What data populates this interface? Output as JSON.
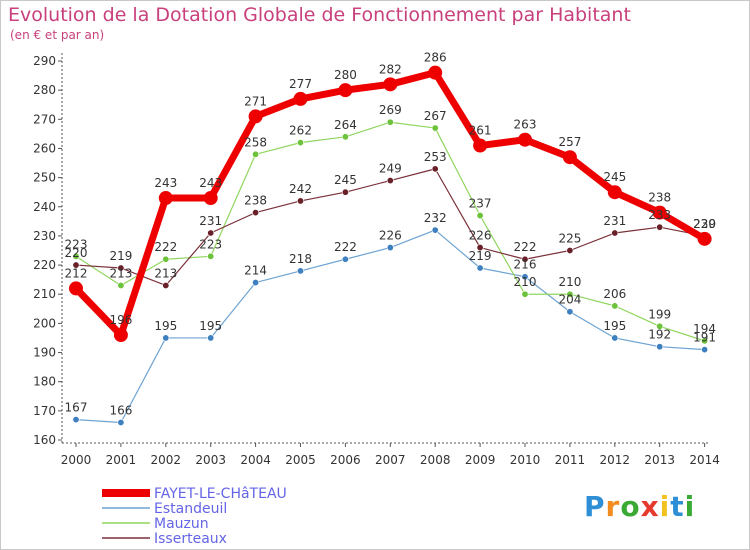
{
  "title": "Evolution de la Dotation Globale de Fonctionnement par Habitant",
  "subtitle": "(en € et par an)",
  "logo": {
    "text": "Proxiti",
    "colors": [
      "#2e8fd6",
      "#f28c1e",
      "#3aaa35",
      "#e63a2e",
      "#f2c21e",
      "#2e8fd6",
      "#3aaa35"
    ]
  },
  "chart_data": {
    "type": "line",
    "x": [
      "2000",
      "2001",
      "2002",
      "2003",
      "2004",
      "2005",
      "2006",
      "2007",
      "2008",
      "2009",
      "2010",
      "2011",
      "2012",
      "2013",
      "2014"
    ],
    "ylim": [
      160,
      290
    ],
    "yticks": [
      160,
      170,
      180,
      190,
      200,
      210,
      220,
      230,
      240,
      250,
      260,
      270,
      280,
      290
    ],
    "grid": false,
    "legend_position": "bottom-left",
    "series": [
      {
        "name": "FAYET-LE-CHâTEAU",
        "color": "#ee0000",
        "width": 7,
        "marker": 7,
        "values": [
          212,
          196,
          243,
          243,
          271,
          277,
          280,
          282,
          286,
          261,
          263,
          257,
          245,
          238,
          229
        ],
        "labels": [
          "212",
          "196",
          "243",
          "243",
          "271",
          "277",
          "280",
          "282",
          "286",
          "261",
          "263",
          "257",
          "245",
          "238",
          "229"
        ]
      },
      {
        "name": "Estandeuil",
        "color": "#6ea3d2",
        "width": 1.2,
        "marker": 3.2,
        "markerColor": "#3e7fc0",
        "values": [
          167,
          166,
          195,
          195,
          214,
          218,
          222,
          226,
          232,
          219,
          216,
          204,
          195,
          192,
          191
        ],
        "labels": [
          "167",
          "166",
          "195",
          "195",
          "214",
          "218",
          "222",
          "226",
          "232",
          "219",
          "216",
          "204",
          "195",
          "192",
          "191"
        ]
      },
      {
        "name": "Mauzun",
        "color": "#90d65f",
        "width": 1.2,
        "marker": 3.2,
        "markerColor": "#6cc23a",
        "values": [
          223,
          213,
          222,
          223,
          258,
          262,
          264,
          269,
          267,
          237,
          210,
          210,
          206,
          199,
          194
        ],
        "labels": [
          "223",
          "213",
          "222",
          "223",
          "258",
          "262",
          "264",
          "269",
          "267",
          "237",
          "210",
          "210",
          "206",
          "199",
          "194"
        ]
      },
      {
        "name": "Isserteaux",
        "color": "#7a3038",
        "width": 1.2,
        "marker": 3.2,
        "markerColor": "#6a2028",
        "values": [
          220,
          219,
          213,
          231,
          238,
          242,
          245,
          249,
          253,
          226,
          222,
          225,
          231,
          233,
          230
        ],
        "labels": [
          "220",
          "219",
          "213",
          "231",
          "238",
          "242",
          "245",
          "249",
          "253",
          "226",
          "222",
          "225",
          "231",
          "233",
          "230"
        ]
      }
    ]
  }
}
